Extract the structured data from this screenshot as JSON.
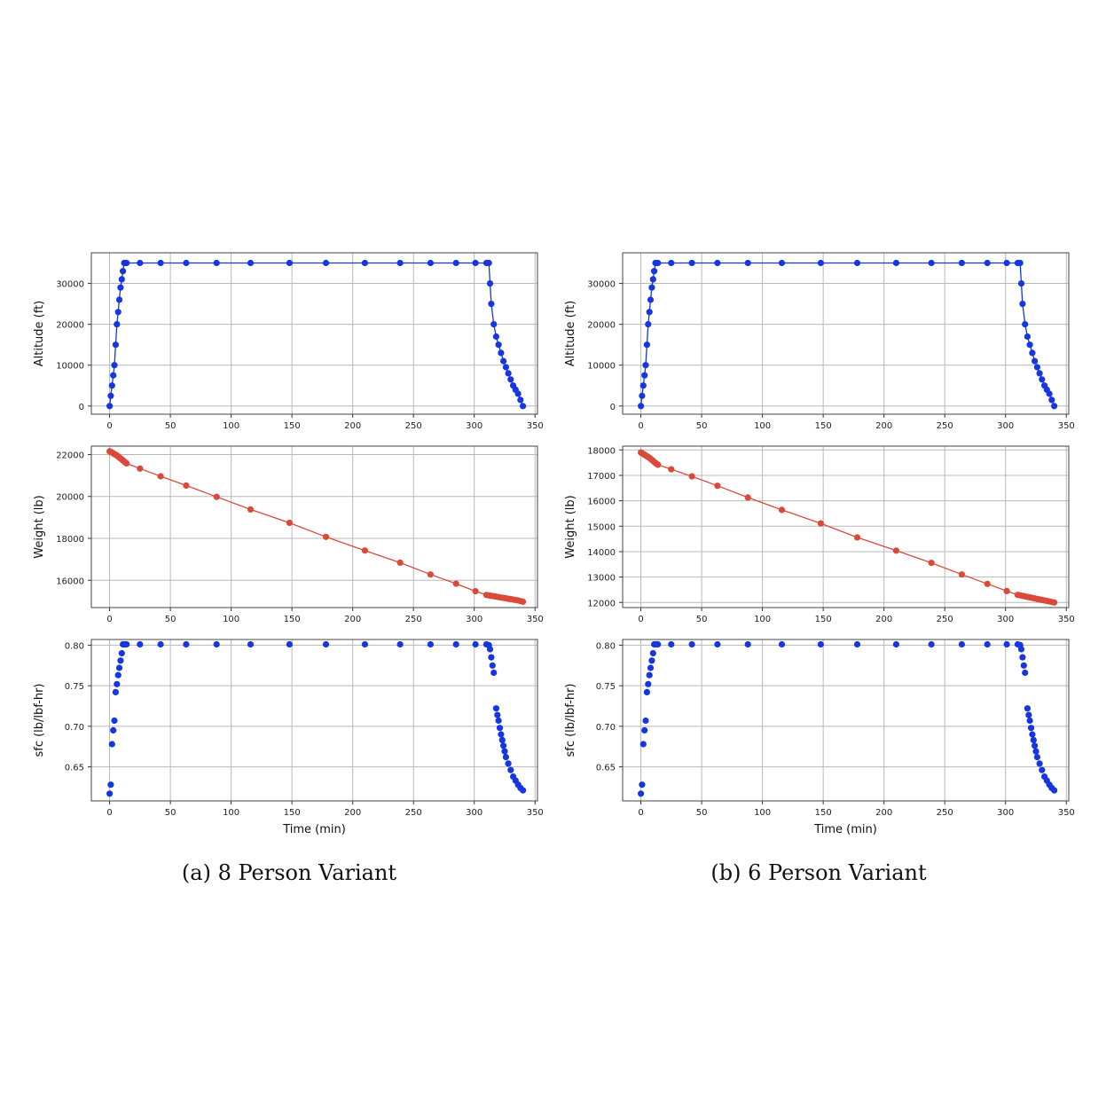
{
  "captions": [
    "(a) 8 Person Variant",
    "(b) 6 Person Variant"
  ],
  "colors": {
    "altitude": "#1536e0",
    "weight": "#d94a3a",
    "sfc": "#1536e0",
    "grid": "#b8b8b8"
  },
  "chart_data": [
    {
      "type": "line",
      "variant": "(a) 8 Person Variant",
      "ylabel": "Altitude (ft)",
      "xlabel": "",
      "xlim": [
        -15,
        352
      ],
      "ylim": [
        -2000,
        37500
      ],
      "xticks": [
        0,
        50,
        100,
        150,
        200,
        250,
        300,
        350
      ],
      "yticks": [
        0,
        10000,
        20000,
        30000
      ],
      "grid": true,
      "color": "#1536e0",
      "x": [
        0,
        1,
        2,
        3,
        4,
        5,
        6,
        7,
        8,
        9,
        10,
        11,
        12,
        13,
        14,
        25,
        42,
        63,
        88,
        116,
        148,
        178,
        210,
        239,
        264,
        285,
        301,
        310,
        312,
        313,
        314,
        316,
        318,
        320,
        322,
        324,
        326,
        328,
        330,
        332,
        334,
        336,
        338,
        340
      ],
      "y": [
        0,
        2500,
        5000,
        7500,
        10000,
        15000,
        20000,
        23000,
        26000,
        29000,
        31000,
        33000,
        35000,
        35000,
        35000,
        35000,
        35000,
        35000,
        35000,
        35000,
        35000,
        35000,
        35000,
        35000,
        35000,
        35000,
        35000,
        35000,
        35000,
        30000,
        25000,
        20000,
        17000,
        15000,
        13000,
        11000,
        9500,
        8000,
        6500,
        5000,
        4000,
        3000,
        1500,
        0
      ]
    },
    {
      "type": "line",
      "variant": "(a) 8 Person Variant",
      "ylabel": "Weight (lb)",
      "xlabel": "",
      "xlim": [
        -15,
        352
      ],
      "ylim": [
        14700,
        22400
      ],
      "xticks": [
        0,
        50,
        100,
        150,
        200,
        250,
        300,
        350
      ],
      "yticks": [
        16000,
        18000,
        20000,
        22000
      ],
      "grid": true,
      "color": "#d94a3a",
      "x": [
        0,
        1,
        2,
        3,
        4,
        5,
        6,
        7,
        8,
        9,
        10,
        11,
        12,
        13,
        14,
        25,
        42,
        63,
        88,
        116,
        148,
        178,
        210,
        239,
        264,
        285,
        301,
        310,
        312,
        314,
        316,
        318,
        320,
        322,
        324,
        326,
        328,
        330,
        332,
        334,
        336,
        338,
        340
      ],
      "y": [
        22150,
        22120,
        22090,
        22060,
        22020,
        21990,
        21950,
        21910,
        21860,
        21810,
        21770,
        21720,
        21670,
        21620,
        21580,
        21330,
        20960,
        20520,
        19980,
        19380,
        18740,
        18070,
        17420,
        16840,
        16280,
        15840,
        15480,
        15300,
        15280,
        15260,
        15240,
        15220,
        15200,
        15180,
        15160,
        15140,
        15120,
        15100,
        15080,
        15060,
        15040,
        15010,
        14980
      ]
    },
    {
      "type": "scatter",
      "variant": "(a) 8 Person Variant",
      "ylabel": "sfc (lb/lbf-hr)",
      "xlabel": "Time (min)",
      "xlim": [
        -15,
        352
      ],
      "ylim": [
        0.608,
        0.807
      ],
      "xticks": [
        0,
        50,
        100,
        150,
        200,
        250,
        300,
        350
      ],
      "yticks": [
        0.65,
        0.7,
        0.75,
        0.8
      ],
      "grid": true,
      "color": "#1536e0",
      "x": [
        0,
        1,
        2,
        3,
        4,
        5,
        6,
        7,
        8,
        9,
        10,
        11,
        12,
        13,
        14,
        25,
        42,
        63,
        88,
        116,
        148,
        178,
        210,
        239,
        264,
        285,
        301,
        310,
        312,
        313,
        314,
        315,
        316,
        318,
        319,
        320,
        321,
        322,
        323,
        324,
        325,
        326,
        328,
        330,
        332,
        334,
        336,
        338,
        340
      ],
      "y": [
        0.617,
        0.628,
        0.678,
        0.695,
        0.707,
        0.742,
        0.752,
        0.763,
        0.772,
        0.781,
        0.79,
        0.801,
        0.801,
        0.801,
        0.801,
        0.801,
        0.801,
        0.801,
        0.801,
        0.801,
        0.801,
        0.801,
        0.801,
        0.801,
        0.801,
        0.801,
        0.801,
        0.801,
        0.8,
        0.795,
        0.785,
        0.775,
        0.766,
        0.722,
        0.714,
        0.707,
        0.698,
        0.69,
        0.683,
        0.676,
        0.669,
        0.662,
        0.654,
        0.646,
        0.638,
        0.633,
        0.628,
        0.624,
        0.621
      ]
    },
    {
      "type": "line",
      "variant": "(b) 6 Person Variant",
      "ylabel": "Altitude (ft)",
      "xlabel": "",
      "xlim": [
        -15,
        352
      ],
      "ylim": [
        -2000,
        37500
      ],
      "xticks": [
        0,
        50,
        100,
        150,
        200,
        250,
        300,
        350
      ],
      "yticks": [
        0,
        10000,
        20000,
        30000
      ],
      "grid": true,
      "color": "#1536e0",
      "x": [
        0,
        1,
        2,
        3,
        4,
        5,
        6,
        7,
        8,
        9,
        10,
        11,
        12,
        13,
        14,
        25,
        42,
        63,
        88,
        116,
        148,
        178,
        210,
        239,
        264,
        285,
        301,
        310,
        312,
        313,
        314,
        316,
        318,
        320,
        322,
        324,
        326,
        328,
        330,
        332,
        334,
        336,
        338,
        340
      ],
      "y": [
        0,
        2500,
        5000,
        7500,
        10000,
        15000,
        20000,
        23000,
        26000,
        29000,
        31000,
        33000,
        35000,
        35000,
        35000,
        35000,
        35000,
        35000,
        35000,
        35000,
        35000,
        35000,
        35000,
        35000,
        35000,
        35000,
        35000,
        35000,
        35000,
        30000,
        25000,
        20000,
        17000,
        15000,
        13000,
        11000,
        9500,
        8000,
        6500,
        5000,
        4000,
        3000,
        1500,
        0
      ]
    },
    {
      "type": "line",
      "variant": "(b) 6 Person Variant",
      "ylabel": "Weight (lb)",
      "xlabel": "",
      "xlim": [
        -15,
        352
      ],
      "ylim": [
        11800,
        18150
      ],
      "xticks": [
        0,
        50,
        100,
        150,
        200,
        250,
        300,
        350
      ],
      "yticks": [
        12000,
        13000,
        14000,
        15000,
        16000,
        17000,
        18000
      ],
      "grid": true,
      "color": "#d94a3a",
      "x": [
        0,
        1,
        2,
        3,
        4,
        5,
        6,
        7,
        8,
        9,
        10,
        11,
        12,
        13,
        14,
        25,
        42,
        63,
        88,
        116,
        148,
        178,
        210,
        239,
        264,
        285,
        301,
        310,
        312,
        314,
        316,
        318,
        320,
        322,
        324,
        326,
        328,
        330,
        332,
        334,
        336,
        338,
        340
      ],
      "y": [
        17900,
        17870,
        17840,
        17810,
        17780,
        17750,
        17720,
        17690,
        17650,
        17610,
        17570,
        17530,
        17490,
        17450,
        17420,
        17240,
        16960,
        16590,
        16130,
        15640,
        15110,
        14560,
        14040,
        13560,
        13100,
        12730,
        12450,
        12300,
        12280,
        12260,
        12240,
        12220,
        12200,
        12180,
        12160,
        12140,
        12120,
        12100,
        12080,
        12060,
        12040,
        12020,
        12000
      ]
    },
    {
      "type": "scatter",
      "variant": "(b) 6 Person Variant",
      "ylabel": "sfc (lb/lbf-hr)",
      "xlabel": "Time (min)",
      "xlim": [
        -15,
        352
      ],
      "ylim": [
        0.608,
        0.807
      ],
      "xticks": [
        0,
        50,
        100,
        150,
        200,
        250,
        300,
        350
      ],
      "yticks": [
        0.65,
        0.7,
        0.75,
        0.8
      ],
      "grid": true,
      "color": "#1536e0",
      "x": [
        0,
        1,
        2,
        3,
        4,
        5,
        6,
        7,
        8,
        9,
        10,
        11,
        12,
        13,
        14,
        25,
        42,
        63,
        88,
        116,
        148,
        178,
        210,
        239,
        264,
        285,
        301,
        310,
        312,
        313,
        314,
        315,
        316,
        318,
        319,
        320,
        321,
        322,
        323,
        324,
        325,
        326,
        328,
        330,
        332,
        334,
        336,
        338,
        340
      ],
      "y": [
        0.617,
        0.628,
        0.678,
        0.695,
        0.707,
        0.742,
        0.752,
        0.763,
        0.772,
        0.781,
        0.79,
        0.801,
        0.801,
        0.801,
        0.801,
        0.801,
        0.801,
        0.801,
        0.801,
        0.801,
        0.801,
        0.801,
        0.801,
        0.801,
        0.801,
        0.801,
        0.801,
        0.801,
        0.8,
        0.795,
        0.785,
        0.775,
        0.766,
        0.722,
        0.714,
        0.707,
        0.698,
        0.69,
        0.683,
        0.676,
        0.669,
        0.662,
        0.654,
        0.646,
        0.638,
        0.633,
        0.628,
        0.624,
        0.621
      ]
    }
  ]
}
